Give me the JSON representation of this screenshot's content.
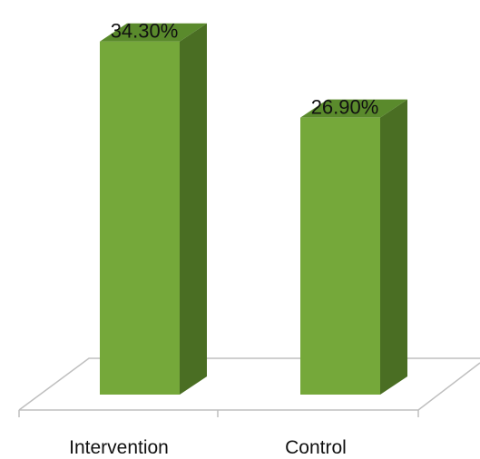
{
  "chart_data": {
    "type": "bar",
    "categories": [
      "Intervention",
      "Control"
    ],
    "values": [
      34.3,
      26.9
    ],
    "value_labels": [
      "34.30%",
      "26.90%"
    ],
    "title": "",
    "xlabel": "",
    "ylabel": "",
    "ylim": [
      0,
      35
    ],
    "grid": false,
    "legend": "none",
    "style": "3d-column"
  },
  "colors": {
    "bar_front": "#75a83a",
    "bar_side": "#4a6e23",
    "bar_top": "#5a8a2c",
    "floor_line": "#bfbfbf",
    "text": "#111111"
  }
}
